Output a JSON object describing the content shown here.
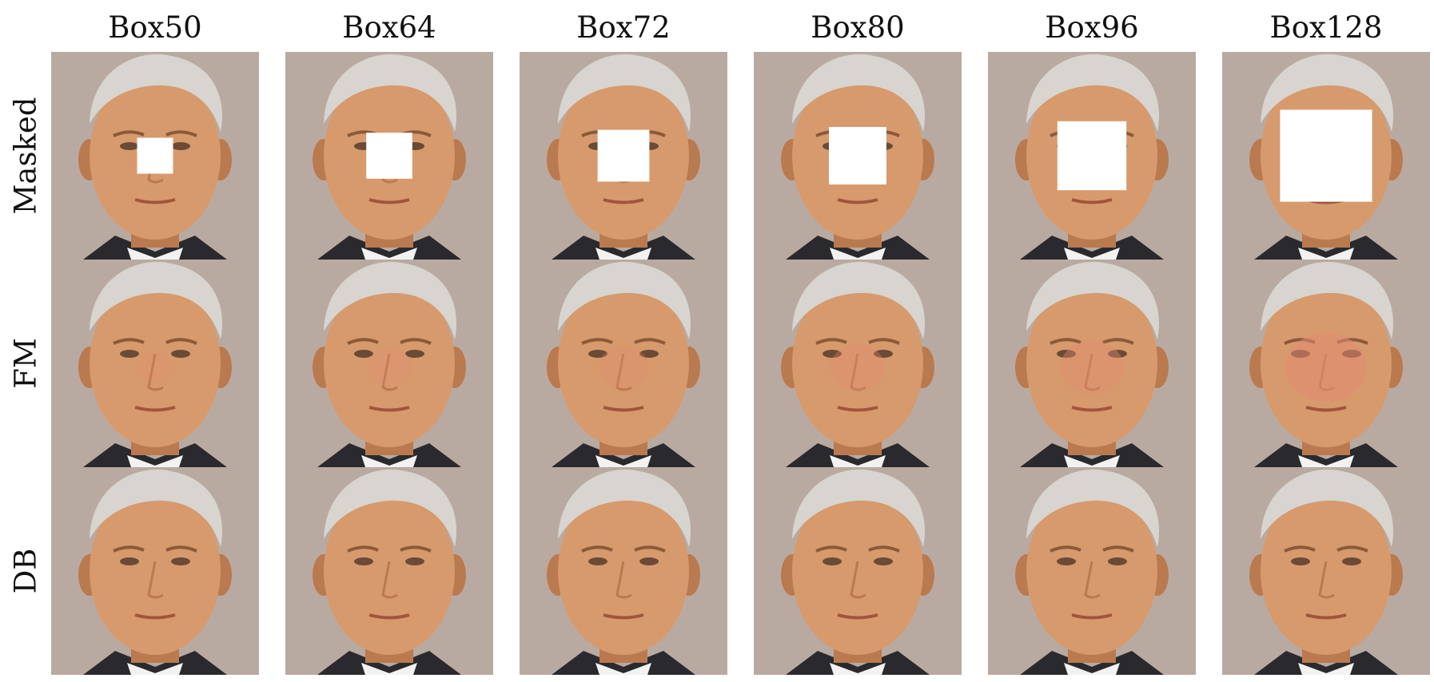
{
  "columns": [
    {
      "label": "Box50",
      "mask_side": 50
    },
    {
      "label": "Box64",
      "mask_side": 64
    },
    {
      "label": "Box72",
      "mask_side": 72
    },
    {
      "label": "Box80",
      "mask_side": 80
    },
    {
      "label": "Box96",
      "mask_side": 96
    },
    {
      "label": "Box128",
      "mask_side": 128
    }
  ],
  "rows": [
    {
      "label": "Masked"
    },
    {
      "label": "FM"
    },
    {
      "label": "DB"
    }
  ],
  "colors": {
    "background": "#b9aaa1",
    "hair": "#d8d4cf",
    "skin": "#d79a6c",
    "skin_shadow": "#b97a4f",
    "mask": "#ffffff",
    "suit": "#2a2a2e",
    "shirt": "#f2f2f0",
    "fm_artifact": "#e48a72"
  }
}
